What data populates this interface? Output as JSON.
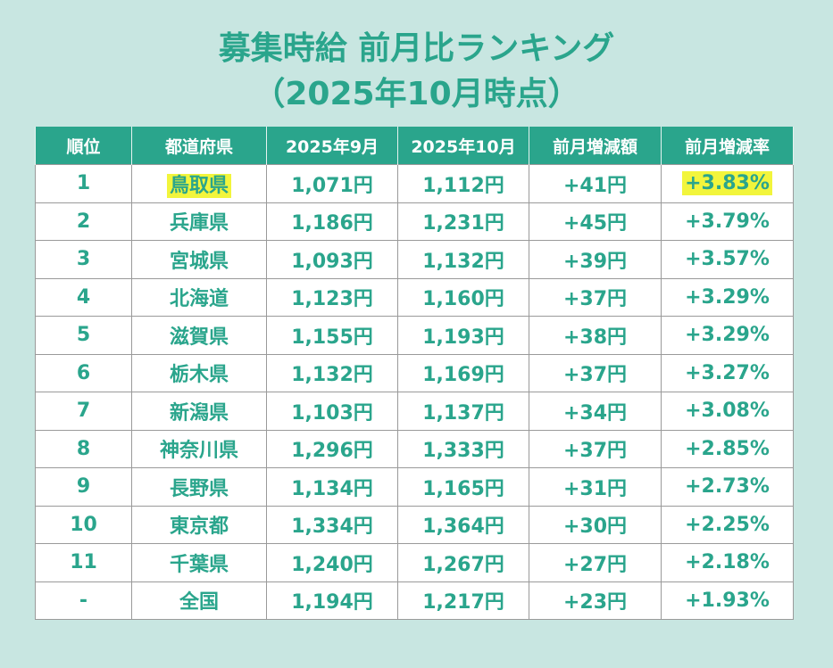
{
  "title": {
    "line1": "募集時給 前月比ランキング",
    "line2": "（2025年10月時点）"
  },
  "columns": [
    "順位",
    "都道府県",
    "2025年9月",
    "2025年10月",
    "前月増減額",
    "前月増減率"
  ],
  "rows": [
    {
      "rank": "1",
      "pref": "鳥取県",
      "sep": "1,071円",
      "oct": "1,112円",
      "diff": "+41円",
      "rate": "+3.83%",
      "highlight": true
    },
    {
      "rank": "2",
      "pref": "兵庫県",
      "sep": "1,186円",
      "oct": "1,231円",
      "diff": "+45円",
      "rate": "+3.79%"
    },
    {
      "rank": "3",
      "pref": "宮城県",
      "sep": "1,093円",
      "oct": "1,132円",
      "diff": "+39円",
      "rate": "+3.57%"
    },
    {
      "rank": "4",
      "pref": "北海道",
      "sep": "1,123円",
      "oct": "1,160円",
      "diff": "+37円",
      "rate": "+3.29%"
    },
    {
      "rank": "5",
      "pref": "滋賀県",
      "sep": "1,155円",
      "oct": "1,193円",
      "diff": "+38円",
      "rate": "+3.29%"
    },
    {
      "rank": "6",
      "pref": "栃木県",
      "sep": "1,132円",
      "oct": "1,169円",
      "diff": "+37円",
      "rate": "+3.27%"
    },
    {
      "rank": "7",
      "pref": "新潟県",
      "sep": "1,103円",
      "oct": "1,137円",
      "diff": "+34円",
      "rate": "+3.08%"
    },
    {
      "rank": "8",
      "pref": "神奈川県",
      "sep": "1,296円",
      "oct": "1,333円",
      "diff": "+37円",
      "rate": "+2.85%"
    },
    {
      "rank": "9",
      "pref": "長野県",
      "sep": "1,134円",
      "oct": "1,165円",
      "diff": "+31円",
      "rate": "+2.73%"
    },
    {
      "rank": "10",
      "pref": "東京都",
      "sep": "1,334円",
      "oct": "1,364円",
      "diff": "+30円",
      "rate": "+2.25%"
    },
    {
      "rank": "11",
      "pref": "千葉県",
      "sep": "1,240円",
      "oct": "1,267円",
      "diff": "+27円",
      "rate": "+2.18%"
    },
    {
      "rank": "-",
      "pref": "全国",
      "sep": "1,194円",
      "oct": "1,217円",
      "diff": "+23円",
      "rate": "+1.93%"
    }
  ],
  "colors": {
    "accent": "#2aa58c",
    "background": "#c8e6e1",
    "highlight": "#f2f53c"
  },
  "chart_data": {
    "type": "table",
    "title": "募集時給 前月比ランキング（2025年10月時点）",
    "columns": [
      "順位",
      "都道府県",
      "2025年9月",
      "2025年10月",
      "前月増減額",
      "前月増減率"
    ],
    "rows": [
      [
        "1",
        "鳥取県",
        "1,071円",
        "1,112円",
        "+41円",
        "+3.83%"
      ],
      [
        "2",
        "兵庫県",
        "1,186円",
        "1,231円",
        "+45円",
        "+3.79%"
      ],
      [
        "3",
        "宮城県",
        "1,093円",
        "1,132円",
        "+39円",
        "+3.57%"
      ],
      [
        "4",
        "北海道",
        "1,123円",
        "1,160円",
        "+37円",
        "+3.29%"
      ],
      [
        "5",
        "滋賀県",
        "1,155円",
        "1,193円",
        "+38円",
        "+3.29%"
      ],
      [
        "6",
        "栃木県",
        "1,132円",
        "1,169円",
        "+37円",
        "+3.27%"
      ],
      [
        "7",
        "新潟県",
        "1,103円",
        "1,137円",
        "+34円",
        "+3.08%"
      ],
      [
        "8",
        "神奈川県",
        "1,296円",
        "1,333円",
        "+37円",
        "+2.85%"
      ],
      [
        "9",
        "長野県",
        "1,134円",
        "1,165円",
        "+31円",
        "+2.73%"
      ],
      [
        "10",
        "東京都",
        "1,334円",
        "1,364円",
        "+30円",
        "+2.25%"
      ],
      [
        "11",
        "千葉県",
        "1,240円",
        "1,267円",
        "+27円",
        "+2.18%"
      ],
      [
        "-",
        "全国",
        "1,194円",
        "1,217円",
        "+23円",
        "+1.93%"
      ]
    ]
  }
}
